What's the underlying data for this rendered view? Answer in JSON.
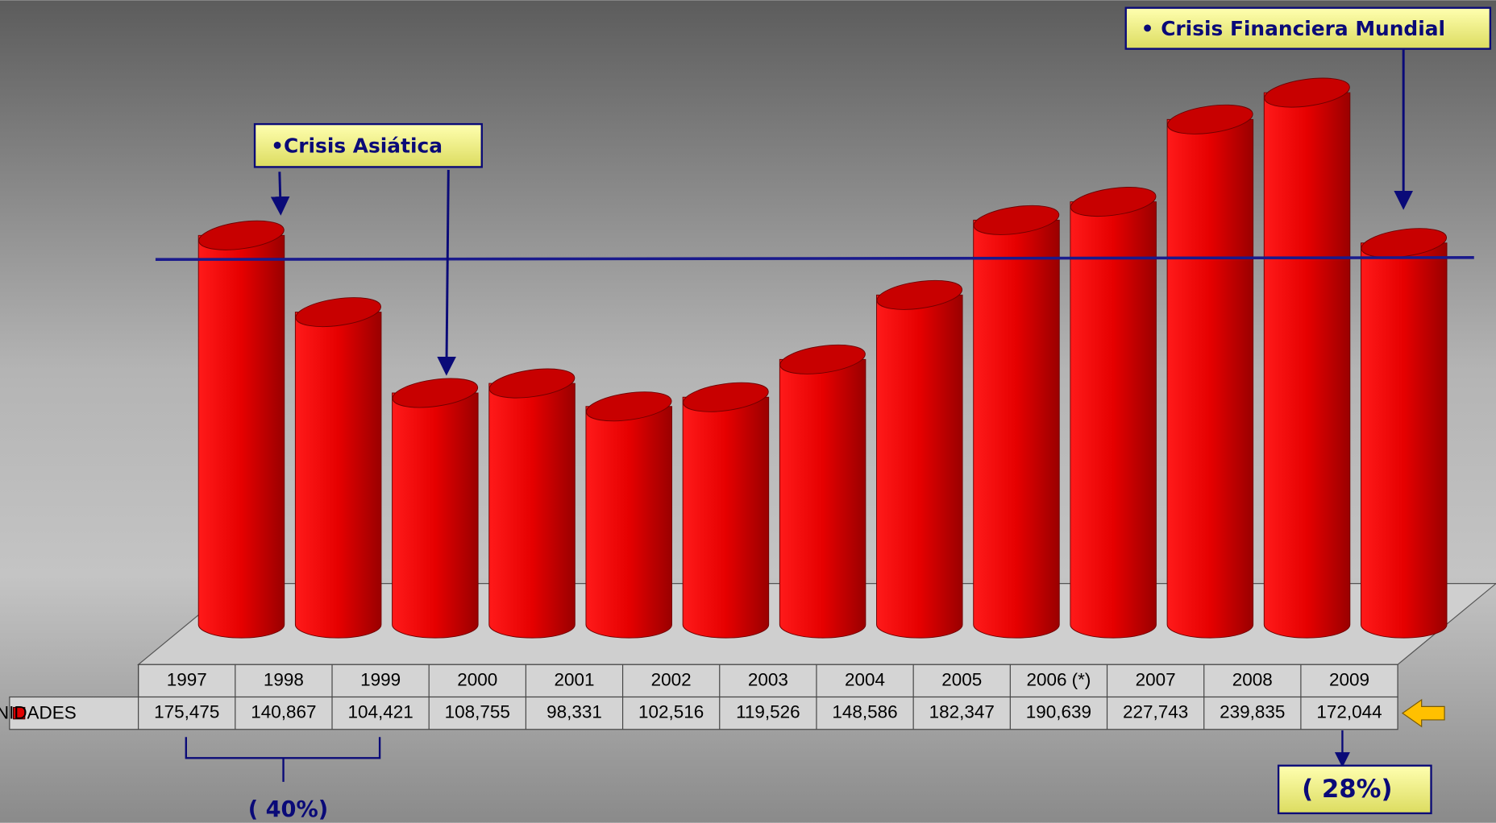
{
  "chart_data": {
    "type": "bar",
    "categories": [
      "1997",
      "1998",
      "1999",
      "2000",
      "2001",
      "2002",
      "2003",
      "2004",
      "2005",
      "2006 (*)",
      "2007",
      "2008",
      "2009"
    ],
    "series": [
      {
        "name": "UNIDADES",
        "color": "#e00000",
        "values": [
          175475,
          140867,
          104421,
          108755,
          98331,
          102516,
          119526,
          148586,
          182347,
          190639,
          227743,
          239835,
          172044
        ],
        "value_labels": [
          "175,475",
          "140,867",
          "104,421",
          "108,755",
          "98,331",
          "102,516",
          "119,526",
          "148,586",
          "182,347",
          "190,639",
          "227,743",
          "239,835",
          "172,044"
        ]
      }
    ],
    "annotations": [
      "•Crisis Asiática",
      "• Crisis Financiera Mundial",
      "( 40%)",
      "( 28%)"
    ]
  }
}
